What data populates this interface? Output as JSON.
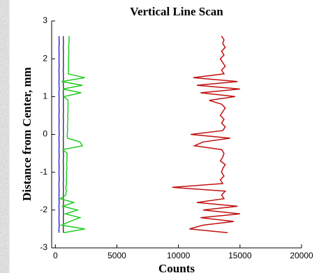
{
  "chart_data": {
    "type": "line",
    "title": "Vertical Line Scan",
    "xlabel": "Counts",
    "ylabel": "Distance from Center, mm",
    "xlim": [
      -300,
      20000
    ],
    "xticks": [
      0,
      5000,
      10000,
      15000,
      20000
    ],
    "ylim": [
      -3,
      3
    ],
    "yticks": [
      -3,
      -2,
      -1,
      0,
      1,
      2,
      3
    ],
    "y": [
      -2.6,
      -2.5,
      -2.4,
      -2.3,
      -2.2,
      -2.1,
      -2.0,
      -1.9,
      -1.8,
      -1.7,
      -1.6,
      -1.5,
      -1.4,
      -1.3,
      -1.2,
      -1.1,
      -1.0,
      -0.9,
      -0.8,
      -0.7,
      -0.6,
      -0.5,
      -0.4,
      -0.3,
      -0.2,
      -0.1,
      0.0,
      0.1,
      0.2,
      0.3,
      0.4,
      0.5,
      0.6,
      0.7,
      0.8,
      0.9,
      1.0,
      1.1,
      1.2,
      1.3,
      1.4,
      1.5,
      1.6,
      1.7,
      1.8,
      1.9,
      2.0,
      2.1,
      2.2,
      2.3,
      2.4,
      2.5,
      2.6
    ],
    "series": [
      {
        "color": "#3030d0",
        "values": [
          300,
          290,
          310,
          300,
          295,
          305,
          300,
          290,
          310,
          300,
          295,
          305,
          300,
          290,
          310,
          300,
          295,
          305,
          300,
          290,
          310,
          300,
          295,
          305,
          300,
          290,
          310,
          300,
          295,
          305,
          300,
          290,
          310,
          300,
          295,
          305,
          300,
          290,
          310,
          300,
          295,
          305,
          300,
          290,
          310,
          300,
          295,
          305,
          300,
          290,
          310,
          300,
          295
        ]
      },
      {
        "color": "#503070",
        "values": [
          650,
          640,
          660,
          650,
          645,
          655,
          650,
          640,
          660,
          650,
          645,
          655,
          650,
          640,
          660,
          650,
          645,
          655,
          650,
          640,
          660,
          650,
          645,
          655,
          650,
          640,
          660,
          650,
          645,
          655,
          650,
          640,
          660,
          650,
          645,
          655,
          650,
          640,
          660,
          650,
          645,
          655,
          650,
          640,
          660,
          650,
          645,
          655,
          650,
          640,
          660,
          650,
          645
        ]
      },
      {
        "color": "#22cc22",
        "values": [
          700,
          2400,
          500,
          1200,
          2000,
          800,
          1800,
          600,
          1500,
          400,
          850,
          900,
          850,
          900,
          900,
          920,
          900,
          940,
          920,
          950,
          940,
          960,
          600,
          2200,
          2000,
          980,
          960,
          1000,
          980,
          1000,
          1020,
          1000,
          1030,
          1020,
          1040,
          1030,
          700,
          2100,
          600,
          2200,
          500,
          2400,
          1050,
          1070,
          1060,
          1080,
          1070,
          1090,
          1100,
          1080,
          1100,
          1120,
          1100
        ]
      },
      {
        "color": "#c01010",
        "values": [
          14000,
          10900,
          12000,
          14500,
          11800,
          15000,
          12000,
          14800,
          11500,
          13700,
          13500,
          13800,
          9500,
          13600,
          13400,
          13700,
          13500,
          13600,
          13800,
          13400,
          13600,
          13700,
          13500,
          11300,
          12000,
          14200,
          11000,
          13600,
          13800,
          13500,
          13700,
          13400,
          13600,
          13800,
          13500,
          12500,
          14600,
          11800,
          15000,
          11500,
          14800,
          11200,
          13700,
          13500,
          13800,
          13600,
          13400,
          13700,
          13500,
          13800,
          13600,
          13700,
          13500
        ]
      }
    ]
  }
}
